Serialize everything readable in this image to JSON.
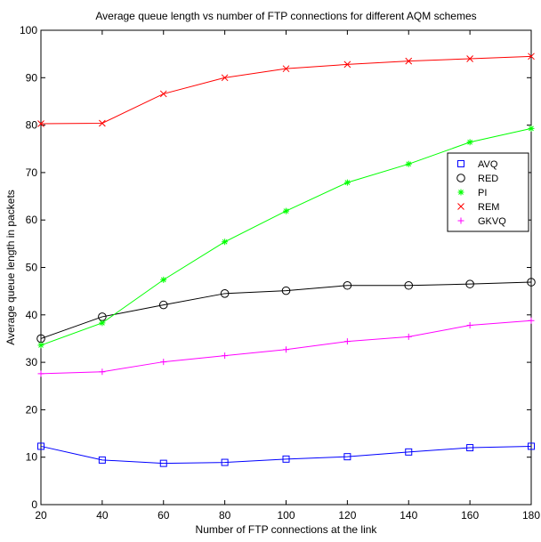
{
  "chart_data": {
    "type": "line",
    "title": "Average queue length vs number of FTP connections for different AQM schemes",
    "xlabel": "Number of FTP connections at the link",
    "ylabel": "Average queue length in packets",
    "xlim": [
      20,
      180
    ],
    "ylim": [
      0,
      100
    ],
    "xticks": [
      20,
      40,
      60,
      80,
      100,
      120,
      140,
      160,
      180
    ],
    "yticks": [
      0,
      10,
      20,
      30,
      40,
      50,
      60,
      70,
      80,
      90,
      100
    ],
    "grid": false,
    "legend_position": "right",
    "x": [
      20,
      40,
      60,
      80,
      100,
      120,
      140,
      160,
      180
    ],
    "series": [
      {
        "name": "AVQ",
        "color": "#0000ff",
        "marker": "square",
        "values": [
          12.3,
          9.4,
          8.7,
          8.9,
          9.6,
          10.1,
          11.1,
          12.0,
          12.3
        ]
      },
      {
        "name": "RED",
        "color": "#000000",
        "marker": "circle",
        "values": [
          35.0,
          39.6,
          42.1,
          44.5,
          45.1,
          46.2,
          46.2,
          46.5,
          46.9
        ]
      },
      {
        "name": "PI",
        "color": "#00ff00",
        "marker": "star",
        "values": [
          33.6,
          38.3,
          47.4,
          55.4,
          61.9,
          67.9,
          71.8,
          76.4,
          79.3
        ]
      },
      {
        "name": "REM",
        "color": "#ff0000",
        "marker": "x",
        "values": [
          80.3,
          80.4,
          86.6,
          90.0,
          91.9,
          92.8,
          93.5,
          94.0,
          94.5
        ]
      },
      {
        "name": "GKVQ",
        "color": "#ff00ff",
        "marker": "plus",
        "values": [
          27.6,
          28.0,
          30.1,
          31.4,
          32.7,
          34.4,
          35.4,
          37.8,
          38.8
        ]
      }
    ]
  }
}
